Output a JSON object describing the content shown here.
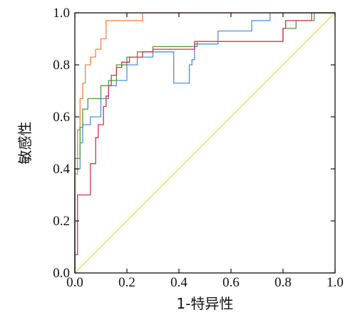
{
  "chart_data": {
    "type": "line",
    "xlabel": "1-特异性",
    "ylabel": "敏感性",
    "xlim": [
      0,
      1
    ],
    "ylim": [
      0,
      1
    ],
    "xticks": [
      "0.0",
      "0.2",
      "0.4",
      "0.6",
      "0.8",
      "1.0"
    ],
    "yticks": [
      "0.0",
      "0.2",
      "0.4",
      "0.6",
      "0.8",
      "1.0"
    ],
    "grid": false,
    "legend": "none",
    "series": [
      {
        "color": "#ff7f3f",
        "x": [
          0.0,
          0.0,
          0.01,
          0.01,
          0.02,
          0.02,
          0.03,
          0.03,
          0.04,
          0.04,
          0.06,
          0.06,
          0.08,
          0.08,
          0.1,
          0.1,
          0.12,
          0.12,
          0.2,
          0.2,
          0.26,
          0.26,
          1.0
        ],
        "y": [
          0.0,
          0.38,
          0.38,
          0.55,
          0.55,
          0.67,
          0.67,
          0.73,
          0.73,
          0.8,
          0.8,
          0.83,
          0.83,
          0.86,
          0.86,
          0.9,
          0.9,
          0.97,
          0.97,
          0.97,
          0.97,
          1.0,
          1.0
        ]
      },
      {
        "color": "#4f90dd",
        "x": [
          0.0,
          0.0,
          0.02,
          0.02,
          0.03,
          0.03,
          0.06,
          0.06,
          0.1,
          0.1,
          0.13,
          0.13,
          0.16,
          0.16,
          0.2,
          0.2,
          0.24,
          0.24,
          0.3,
          0.3,
          0.38,
          0.38,
          0.44,
          0.44,
          0.45,
          0.45,
          0.46,
          0.46,
          0.55,
          0.55,
          0.68,
          0.68,
          0.75,
          0.75,
          0.92,
          0.92,
          1.0
        ],
        "y": [
          0.0,
          0.4,
          0.4,
          0.5,
          0.5,
          0.57,
          0.57,
          0.6,
          0.6,
          0.67,
          0.67,
          0.72,
          0.72,
          0.74,
          0.74,
          0.8,
          0.8,
          0.83,
          0.83,
          0.85,
          0.85,
          0.73,
          0.73,
          0.8,
          0.8,
          0.82,
          0.82,
          0.88,
          0.88,
          0.93,
          0.93,
          0.97,
          0.97,
          1.0,
          1.0,
          1.0,
          1.0
        ]
      },
      {
        "color": "#4a9a3a",
        "x": [
          0.0,
          0.0,
          0.02,
          0.02,
          0.03,
          0.03,
          0.05,
          0.05,
          0.1,
          0.1,
          0.13,
          0.13,
          0.16,
          0.16,
          0.2,
          0.2,
          0.24,
          0.24,
          0.3,
          0.3,
          0.47,
          0.47,
          0.8,
          0.8,
          0.85,
          0.85,
          0.92,
          0.92,
          1.0
        ],
        "y": [
          0.0,
          0.44,
          0.44,
          0.56,
          0.56,
          0.63,
          0.63,
          0.67,
          0.67,
          0.72,
          0.72,
          0.74,
          0.74,
          0.8,
          0.8,
          0.83,
          0.83,
          0.85,
          0.85,
          0.87,
          0.87,
          0.89,
          0.89,
          0.94,
          0.94,
          0.97,
          0.97,
          1.0,
          1.0
        ]
      },
      {
        "color": "#d9304f",
        "x": [
          0.0,
          0.0,
          0.01,
          0.01,
          0.06,
          0.06,
          0.08,
          0.08,
          0.09,
          0.09,
          0.11,
          0.11,
          0.12,
          0.12,
          0.13,
          0.13,
          0.14,
          0.14,
          0.16,
          0.16,
          0.18,
          0.18,
          0.21,
          0.21,
          0.26,
          0.26,
          0.3,
          0.3,
          0.46,
          0.46,
          0.8,
          0.8,
          0.81,
          0.81,
          0.91,
          0.91,
          1.0
        ],
        "y": [
          0.0,
          0.07,
          0.07,
          0.3,
          0.3,
          0.42,
          0.42,
          0.52,
          0.52,
          0.57,
          0.57,
          0.64,
          0.64,
          0.68,
          0.68,
          0.72,
          0.72,
          0.76,
          0.76,
          0.79,
          0.79,
          0.81,
          0.81,
          0.83,
          0.83,
          0.85,
          0.85,
          0.86,
          0.86,
          0.89,
          0.89,
          0.94,
          0.94,
          0.97,
          0.97,
          1.0,
          1.0
        ]
      },
      {
        "color": "#e8d46a",
        "x": [
          0,
          1
        ],
        "y": [
          0,
          1
        ]
      }
    ]
  }
}
